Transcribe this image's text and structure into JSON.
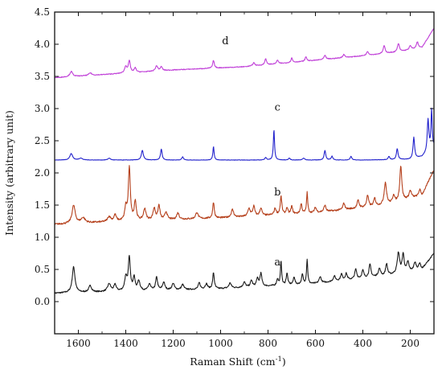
{
  "chart_data": {
    "type": "line",
    "xlabel_main": "Raman Shift (cm",
    "xlabel_sup": "-1",
    "xlabel_end": ")",
    "ylabel": "Intensity (arbitrary unit)",
    "xlim": [
      1700,
      100
    ],
    "ylim": [
      -0.5,
      4.5
    ],
    "x_reversed": true,
    "grid": false,
    "x_ticks": [
      1600,
      1400,
      1200,
      1000,
      800,
      600,
      400,
      200
    ],
    "x_tick_labels": [
      "1600",
      "1400",
      "1200",
      "1000",
      "800",
      "600",
      "400",
      "200"
    ],
    "y_ticks": [
      0.0,
      0.5,
      1.0,
      1.5,
      2.0,
      2.5,
      3.0,
      3.5,
      4.0,
      4.5
    ],
    "y_tick_labels": [
      "0.0",
      "0.5",
      "1.0",
      "1.5",
      "2.0",
      "2.5",
      "3.0",
      "3.5",
      "4.0",
      "4.5"
    ],
    "series": [
      {
        "name": "a",
        "color": "#1a1a1a",
        "label_pos": [
          760,
          0.56
        ],
        "baseline": [
          [
            1700,
            0.13
          ],
          [
            1000,
            0.2
          ],
          [
            600,
            0.28
          ],
          [
            300,
            0.4
          ],
          [
            150,
            0.5
          ],
          [
            100,
            0.75
          ]
        ],
        "noise": 0.02,
        "peaks": [
          [
            1620,
            0.4,
            7
          ],
          [
            1550,
            0.1,
            7
          ],
          [
            1470,
            0.12,
            8
          ],
          [
            1445,
            0.1,
            6
          ],
          [
            1400,
            0.2,
            6
          ],
          [
            1385,
            0.52,
            5
          ],
          [
            1365,
            0.2,
            5
          ],
          [
            1345,
            0.15,
            6
          ],
          [
            1300,
            0.1,
            6
          ],
          [
            1270,
            0.2,
            5
          ],
          [
            1240,
            0.12,
            6
          ],
          [
            1200,
            0.1,
            6
          ],
          [
            1160,
            0.08,
            6
          ],
          [
            1090,
            0.1,
            5
          ],
          [
            1060,
            0.08,
            6
          ],
          [
            1030,
            0.25,
            4
          ],
          [
            960,
            0.08,
            6
          ],
          [
            900,
            0.08,
            6
          ],
          [
            870,
            0.1,
            5
          ],
          [
            845,
            0.12,
            5
          ],
          [
            830,
            0.2,
            5
          ],
          [
            760,
            0.1,
            4
          ],
          [
            745,
            0.38,
            3
          ],
          [
            720,
            0.18,
            4
          ],
          [
            690,
            0.12,
            4
          ],
          [
            655,
            0.15,
            4
          ],
          [
            635,
            0.38,
            3
          ],
          [
            580,
            0.1,
            5
          ],
          [
            520,
            0.08,
            6
          ],
          [
            490,
            0.1,
            5
          ],
          [
            470,
            0.1,
            5
          ],
          [
            430,
            0.15,
            5
          ],
          [
            400,
            0.12,
            5
          ],
          [
            370,
            0.2,
            5
          ],
          [
            330,
            0.12,
            6
          ],
          [
            300,
            0.18,
            5
          ],
          [
            250,
            0.32,
            6
          ],
          [
            230,
            0.28,
            5
          ],
          [
            210,
            0.15,
            5
          ],
          [
            180,
            0.12,
            6
          ],
          [
            160,
            0.1,
            5
          ]
        ]
      },
      {
        "name": "b",
        "color": "#b5401c",
        "label_pos": [
          760,
          1.65
        ],
        "baseline": [
          [
            1700,
            1.2
          ],
          [
            1400,
            1.25
          ],
          [
            1000,
            1.3
          ],
          [
            600,
            1.38
          ],
          [
            300,
            1.5
          ],
          [
            150,
            1.65
          ],
          [
            100,
            2.05
          ]
        ],
        "noise": 0.025,
        "peaks": [
          [
            1620,
            0.28,
            8
          ],
          [
            1580,
            0.08,
            10
          ],
          [
            1470,
            0.08,
            8
          ],
          [
            1445,
            0.1,
            6
          ],
          [
            1400,
            0.2,
            5
          ],
          [
            1385,
            0.82,
            5
          ],
          [
            1360,
            0.3,
            5
          ],
          [
            1320,
            0.18,
            6
          ],
          [
            1280,
            0.18,
            6
          ],
          [
            1260,
            0.22,
            5
          ],
          [
            1230,
            0.12,
            6
          ],
          [
            1180,
            0.1,
            6
          ],
          [
            1100,
            0.1,
            6
          ],
          [
            1030,
            0.25,
            4
          ],
          [
            950,
            0.12,
            6
          ],
          [
            880,
            0.12,
            6
          ],
          [
            860,
            0.15,
            5
          ],
          [
            830,
            0.12,
            5
          ],
          [
            770,
            0.1,
            5
          ],
          [
            745,
            0.28,
            4
          ],
          [
            720,
            0.1,
            4
          ],
          [
            700,
            0.12,
            4
          ],
          [
            660,
            0.15,
            4
          ],
          [
            635,
            0.32,
            3
          ],
          [
            600,
            0.08,
            5
          ],
          [
            560,
            0.1,
            5
          ],
          [
            480,
            0.1,
            5
          ],
          [
            420,
            0.12,
            5
          ],
          [
            380,
            0.18,
            5
          ],
          [
            350,
            0.12,
            5
          ],
          [
            305,
            0.35,
            6
          ],
          [
            270,
            0.12,
            5
          ],
          [
            240,
            0.55,
            5
          ],
          [
            200,
            0.12,
            6
          ],
          [
            160,
            0.1,
            5
          ]
        ]
      },
      {
        "name": "c",
        "color": "#2222cc",
        "label_pos": [
          760,
          2.97
        ],
        "baseline": [
          [
            1700,
            2.2
          ],
          [
            400,
            2.2
          ],
          [
            200,
            2.21
          ],
          [
            150,
            2.25
          ],
          [
            100,
            2.4
          ]
        ],
        "noise": 0.006,
        "peaks": [
          [
            1630,
            0.1,
            7
          ],
          [
            1590,
            0.03,
            8
          ],
          [
            1470,
            0.03,
            6
          ],
          [
            1330,
            0.15,
            5
          ],
          [
            1250,
            0.17,
            4
          ],
          [
            1160,
            0.05,
            4
          ],
          [
            1030,
            0.21,
            3
          ],
          [
            810,
            0.04,
            4
          ],
          [
            775,
            0.47,
            3
          ],
          [
            710,
            0.03,
            4
          ],
          [
            650,
            0.03,
            5
          ],
          [
            560,
            0.15,
            4
          ],
          [
            530,
            0.06,
            4
          ],
          [
            450,
            0.06,
            4
          ],
          [
            290,
            0.05,
            4
          ],
          [
            255,
            0.17,
            4
          ],
          [
            185,
            0.33,
            4
          ],
          [
            125,
            0.5,
            4
          ],
          [
            110,
            0.6,
            3
          ]
        ]
      },
      {
        "name": "d",
        "color": "#c040d8",
        "label_pos": [
          980,
          4.0
        ],
        "baseline": [
          [
            1700,
            3.48
          ],
          [
            1400,
            3.55
          ],
          [
            1200,
            3.6
          ],
          [
            900,
            3.65
          ],
          [
            600,
            3.75
          ],
          [
            400,
            3.82
          ],
          [
            250,
            3.88
          ],
          [
            150,
            3.95
          ],
          [
            100,
            4.25
          ]
        ],
        "noise": 0.012,
        "peaks": [
          [
            1630,
            0.08,
            7
          ],
          [
            1550,
            0.04,
            7
          ],
          [
            1400,
            0.1,
            6
          ],
          [
            1385,
            0.18,
            5
          ],
          [
            1360,
            0.07,
            5
          ],
          [
            1270,
            0.08,
            6
          ],
          [
            1250,
            0.06,
            5
          ],
          [
            1030,
            0.12,
            4
          ],
          [
            860,
            0.05,
            5
          ],
          [
            810,
            0.1,
            4
          ],
          [
            760,
            0.06,
            4
          ],
          [
            700,
            0.07,
            4
          ],
          [
            640,
            0.07,
            4
          ],
          [
            560,
            0.06,
            5
          ],
          [
            480,
            0.05,
            5
          ],
          [
            380,
            0.06,
            5
          ],
          [
            310,
            0.12,
            5
          ],
          [
            250,
            0.13,
            5
          ],
          [
            200,
            0.06,
            5
          ],
          [
            170,
            0.1,
            5
          ]
        ]
      }
    ]
  }
}
